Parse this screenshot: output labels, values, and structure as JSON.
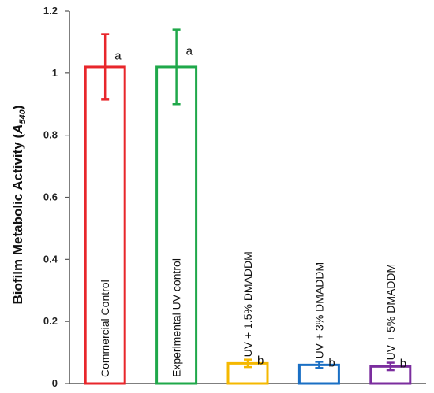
{
  "chart_data": {
    "type": "bar",
    "categories": [
      "Commercial Control",
      "Experimental UV control",
      "UV + 1.5% DMADDM",
      "UV + 3% DMADDM",
      "UV + 5% DMADDM"
    ],
    "values": [
      1.02,
      1.02,
      0.065,
      0.06,
      0.055
    ],
    "errors": [
      0.105,
      0.12,
      0.012,
      0.01,
      0.012
    ],
    "significance": [
      "a",
      "a",
      "b",
      "b",
      "b"
    ],
    "colors": [
      "#e8262b",
      "#1fa84a",
      "#f5b800",
      "#1a6fc4",
      "#7b2d9e"
    ],
    "ylabel": "Biofilm Metabolic Activity (A 540)",
    "ylabel_main": "Biofilm Metabolic Activity (",
    "ylabel_var": "A",
    "ylabel_sub": "540",
    "ylabel_close": ")",
    "ylim": [
      0,
      1.2
    ],
    "yticks": [
      "0",
      "0.2",
      "0.4",
      "0.6",
      "0.8",
      "1",
      "1.2"
    ],
    "grid": false,
    "legend": "none"
  }
}
